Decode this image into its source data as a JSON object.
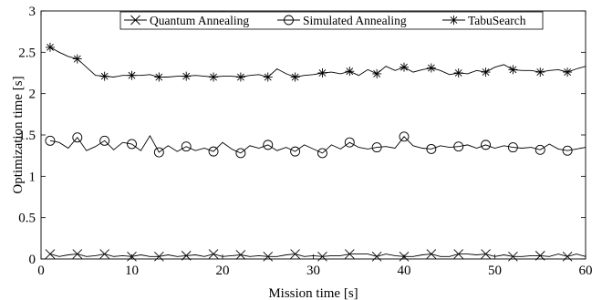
{
  "chart_data": {
    "type": "line",
    "xlabel": "Mission time [s]",
    "ylabel": "Optimization time [s]",
    "xlim": [
      0,
      60
    ],
    "ylim": [
      0,
      3
    ],
    "x_ticks": [
      "0",
      "10",
      "20",
      "30",
      "40",
      "50",
      "60"
    ],
    "y_ticks": [
      "0",
      "0.5",
      "1",
      "1.5",
      "2",
      "2.5",
      "3"
    ],
    "grid": false,
    "legend_position": "top-center",
    "series": [
      {
        "name": "Quantum Annealing",
        "marker": "x",
        "marker_every": 3,
        "x": [
          1,
          2,
          3,
          4,
          5,
          6,
          7,
          8,
          9,
          10,
          11,
          12,
          13,
          14,
          15,
          16,
          17,
          18,
          19,
          20,
          21,
          22,
          23,
          24,
          25,
          26,
          27,
          28,
          29,
          30,
          31,
          32,
          33,
          34,
          35,
          36,
          37,
          38,
          39,
          40,
          41,
          42,
          43,
          44,
          45,
          46,
          47,
          48,
          49,
          50,
          51,
          52,
          53,
          54,
          55,
          56,
          57,
          58,
          59,
          60
        ],
        "y": [
          0.06,
          0.03,
          0.05,
          0.06,
          0.03,
          0.04,
          0.06,
          0.03,
          0.04,
          0.03,
          0.05,
          0.03,
          0.03,
          0.05,
          0.03,
          0.04,
          0.05,
          0.03,
          0.06,
          0.03,
          0.04,
          0.05,
          0.03,
          0.04,
          0.03,
          0.03,
          0.05,
          0.06,
          0.03,
          0.04,
          0.03,
          0.04,
          0.04,
          0.06,
          0.06,
          0.06,
          0.03,
          0.06,
          0.04,
          0.03,
          0.03,
          0.05,
          0.06,
          0.03,
          0.03,
          0.06,
          0.06,
          0.05,
          0.06,
          0.03,
          0.05,
          0.03,
          0.03,
          0.04,
          0.04,
          0.03,
          0.06,
          0.03,
          0.06,
          0.03
        ]
      },
      {
        "name": "Simulated Annealing",
        "marker": "circle",
        "marker_every": 3,
        "x": [
          1,
          2,
          3,
          4,
          5,
          6,
          7,
          8,
          9,
          10,
          11,
          12,
          13,
          14,
          15,
          16,
          17,
          18,
          19,
          20,
          21,
          22,
          23,
          24,
          25,
          26,
          27,
          28,
          29,
          30,
          31,
          32,
          33,
          34,
          35,
          36,
          37,
          38,
          39,
          40,
          41,
          42,
          43,
          44,
          45,
          46,
          47,
          48,
          49,
          50,
          51,
          52,
          53,
          54,
          55,
          56,
          57,
          58,
          59,
          60
        ],
        "y": [
          1.43,
          1.41,
          1.34,
          1.47,
          1.31,
          1.36,
          1.43,
          1.32,
          1.41,
          1.39,
          1.31,
          1.49,
          1.29,
          1.37,
          1.3,
          1.36,
          1.31,
          1.34,
          1.3,
          1.41,
          1.33,
          1.28,
          1.37,
          1.34,
          1.38,
          1.31,
          1.35,
          1.3,
          1.38,
          1.33,
          1.28,
          1.38,
          1.33,
          1.41,
          1.35,
          1.33,
          1.35,
          1.36,
          1.34,
          1.48,
          1.37,
          1.34,
          1.33,
          1.37,
          1.35,
          1.36,
          1.38,
          1.34,
          1.38,
          1.34,
          1.37,
          1.35,
          1.34,
          1.35,
          1.32,
          1.39,
          1.33,
          1.31,
          1.33,
          1.35
        ]
      },
      {
        "name": "TabuSearch",
        "marker": "asterisk",
        "marker_every": 3,
        "x": [
          1,
          2,
          3,
          4,
          5,
          6,
          7,
          8,
          9,
          10,
          11,
          12,
          13,
          14,
          15,
          16,
          17,
          18,
          19,
          20,
          21,
          22,
          23,
          24,
          25,
          26,
          27,
          28,
          29,
          30,
          31,
          32,
          33,
          34,
          35,
          36,
          37,
          38,
          39,
          40,
          41,
          42,
          43,
          44,
          45,
          46,
          47,
          48,
          49,
          50,
          51,
          52,
          53,
          54,
          55,
          56,
          57,
          58,
          59,
          60
        ],
        "y": [
          2.56,
          2.5,
          2.45,
          2.42,
          2.32,
          2.22,
          2.21,
          2.2,
          2.22,
          2.22,
          2.22,
          2.23,
          2.2,
          2.2,
          2.21,
          2.21,
          2.22,
          2.21,
          2.2,
          2.21,
          2.21,
          2.2,
          2.22,
          2.23,
          2.2,
          2.3,
          2.24,
          2.2,
          2.22,
          2.23,
          2.25,
          2.26,
          2.24,
          2.27,
          2.22,
          2.29,
          2.24,
          2.33,
          2.28,
          2.32,
          2.26,
          2.29,
          2.31,
          2.28,
          2.23,
          2.25,
          2.24,
          2.28,
          2.26,
          2.32,
          2.35,
          2.29,
          2.28,
          2.28,
          2.26,
          2.28,
          2.29,
          2.26,
          2.3,
          2.33
        ]
      }
    ]
  }
}
